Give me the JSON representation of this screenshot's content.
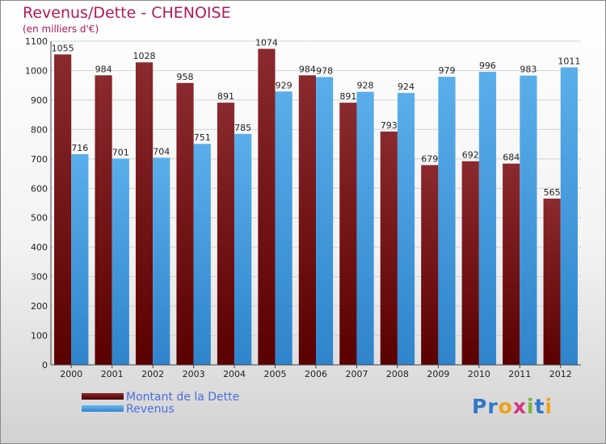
{
  "title": "Revenus/Dette - CHENOISE",
  "subtitle": "(en milliers d'€)",
  "logo": {
    "text": "Proxiti",
    "colors": [
      "#2f77c9",
      "#2f77c9",
      "#f0a11a",
      "#d63384",
      "#7cb342",
      "#2f77c9",
      "#f0a11a"
    ]
  },
  "chart_data": {
    "type": "bar",
    "categories": [
      "2000",
      "2001",
      "2002",
      "2003",
      "2004",
      "2005",
      "2006",
      "2007",
      "2008",
      "2009",
      "2010",
      "2011",
      "2012"
    ],
    "series": [
      {
        "name": "Montant de la Dette",
        "color": "#7a1f22",
        "values": [
          1055,
          984,
          1028,
          958,
          891,
          1074,
          984,
          891,
          793,
          679,
          692,
          684,
          565
        ]
      },
      {
        "name": "Revenus",
        "color": "#4aa3e6",
        "values": [
          716,
          701,
          704,
          751,
          785,
          929,
          978,
          928,
          924,
          979,
          996,
          983,
          1011
        ]
      }
    ],
    "ylim": [
      0,
      1100
    ],
    "yticks": [
      0,
      100,
      200,
      300,
      400,
      500,
      600,
      700,
      800,
      900,
      1000,
      1100
    ],
    "grid": true,
    "legend": "bottom-left"
  }
}
